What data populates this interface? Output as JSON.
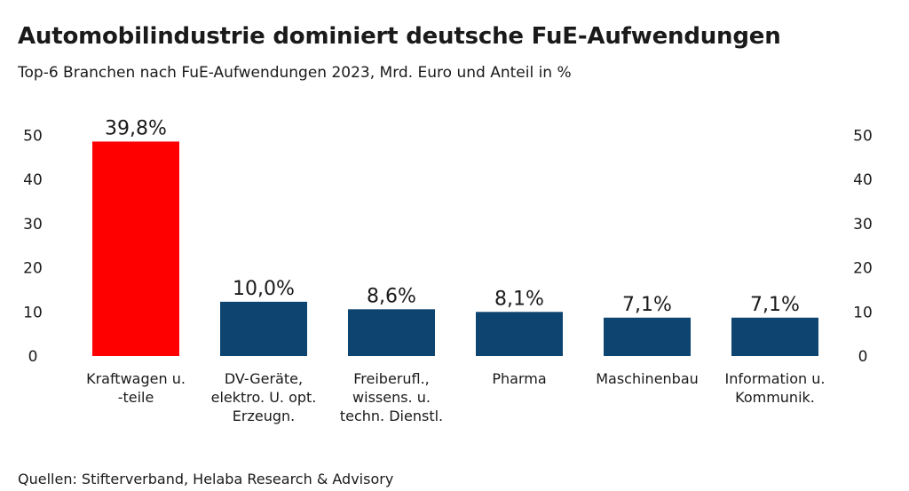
{
  "title": "Automobilindustrie dominiert deutsche FuE-Aufwendungen",
  "subtitle": "Top-6 Branchen nach FuE-Aufwendungen 2023, Mrd. Euro und Anteil in %",
  "source": "Quellen: Stifterverband, Helaba Research & Advisory",
  "colors": {
    "highlight": "#ff0000",
    "default": "#0d4470"
  },
  "chart_data": {
    "type": "bar",
    "title": "Automobilindustrie dominiert deutsche FuE-Aufwendungen",
    "subtitle": "Top-6 Branchen nach FuE-Aufwendungen 2023, Mrd. Euro und Anteil in %",
    "categories": [
      [
        "Kraftwagen u.",
        "-teile"
      ],
      [
        "DV-Geräte,",
        "elektro. U. opt.",
        "Erzeugn."
      ],
      [
        "Freiberufl.,",
        "wissens. u.",
        "techn. Dienstl."
      ],
      [
        "Pharma"
      ],
      [
        "Maschinenbau"
      ],
      [
        "Information u.",
        "Kommunik."
      ]
    ],
    "values": [
      48.6,
      12.3,
      10.6,
      10.0,
      8.7,
      8.7
    ],
    "data_labels": [
      "39,8%",
      "10,0%",
      "8,6%",
      "8,1%",
      "7,1%",
      "7,1%"
    ],
    "highlight_index": 0,
    "ylim": [
      0,
      50
    ],
    "yticks": [
      0,
      10,
      20,
      30,
      40,
      50
    ],
    "ytick_labels": [
      "0",
      "10",
      "20",
      "30",
      "40",
      "50"
    ],
    "secondary_axis": true,
    "grid": false,
    "legend": "none"
  }
}
